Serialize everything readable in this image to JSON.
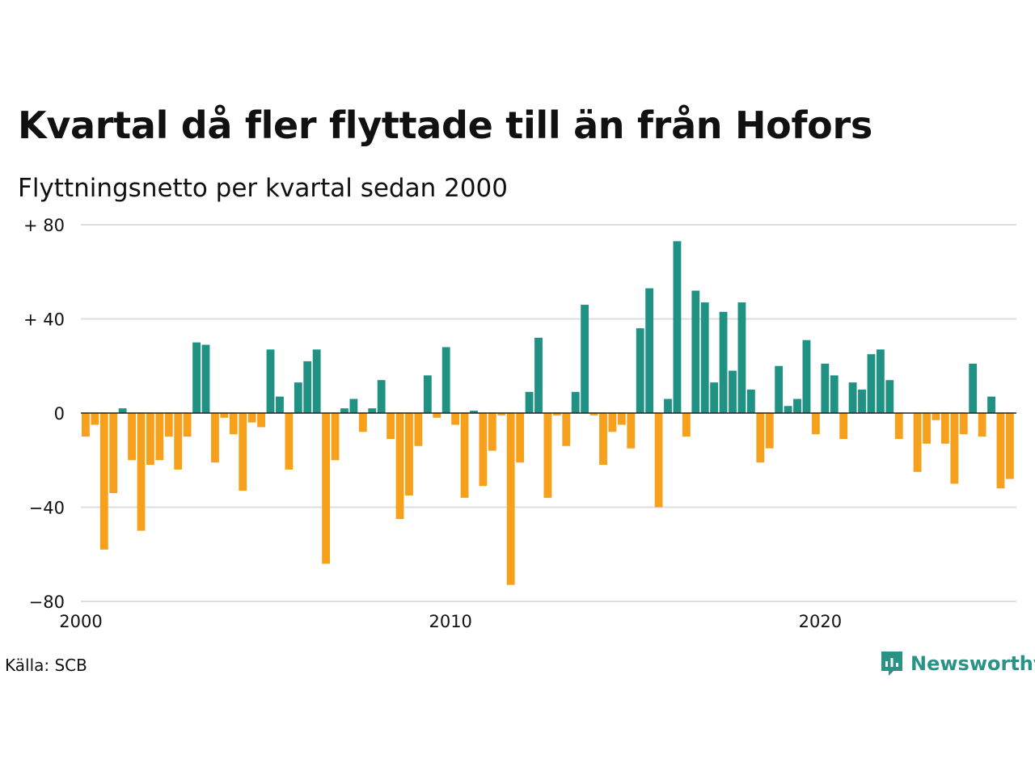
{
  "title": "Kvartal då fler flyttade till än från Hofors",
  "subtitle": "Flyttningsnetto per kvartal sedan 2000",
  "source": "Källa: SCB",
  "logo_text": "Newsworthy",
  "colors": {
    "positive": "#1f9283",
    "negative": "#f6a01b",
    "grid": "#dddddd",
    "zero": "#222222"
  },
  "chart_data": {
    "type": "bar",
    "x_start": "2000Q1",
    "ylim": [
      -80,
      80
    ],
    "y_ticks": [
      80,
      40,
      0,
      -40,
      -80
    ],
    "y_tick_labels": [
      "+ 80",
      "+ 40",
      "0",
      "−40",
      "−80"
    ],
    "x_ticks": [
      2000,
      2010,
      2020
    ],
    "x_tick_labels": [
      "2000",
      "2010",
      "2020"
    ],
    "grid": true,
    "values": [
      -10,
      -5,
      -58,
      -34,
      2,
      -20,
      -50,
      -22,
      -20,
      -10,
      -24,
      -10,
      30,
      29,
      -21,
      -2,
      -9,
      -33,
      -4,
      -6,
      27,
      7,
      -24,
      13,
      22,
      27,
      -64,
      -20,
      2,
      6,
      -8,
      2,
      14,
      -11,
      -45,
      -35,
      -14,
      16,
      -2,
      28,
      -5,
      -36,
      1,
      -31,
      -16,
      -1,
      -73,
      -21,
      9,
      32,
      -36,
      -1,
      -14,
      9,
      46,
      -1,
      -22,
      -8,
      -5,
      -15,
      36,
      53,
      -40,
      6,
      73,
      -10,
      52,
      47,
      13,
      43,
      18,
      47,
      10,
      -21,
      -15,
      20,
      3,
      6,
      31,
      -9,
      21,
      16,
      -11,
      13,
      10,
      25,
      27,
      14,
      -11,
      0,
      -25,
      -13,
      -3,
      -13,
      -30,
      -9,
      21,
      -10,
      7,
      -32,
      -28
    ]
  }
}
